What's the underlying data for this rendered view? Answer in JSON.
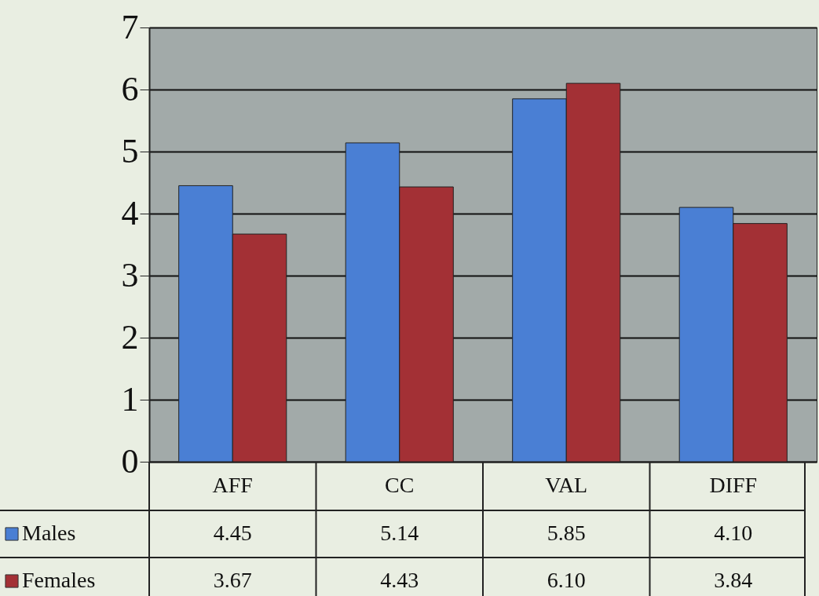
{
  "chart_data": {
    "type": "bar",
    "categories": [
      "AFF",
      "CC",
      "VAL",
      "DIFF"
    ],
    "series": [
      {
        "name": "Males",
        "color": "#4a7fd4",
        "values": [
          4.45,
          5.14,
          5.85,
          4.1
        ],
        "value_labels": [
          "4.45",
          "5.14",
          "5.85",
          "4.10"
        ]
      },
      {
        "name": "Females",
        "color": "#a33035",
        "values": [
          3.67,
          4.43,
          6.1,
          3.84
        ],
        "value_labels": [
          "3.67",
          "4.43",
          "6.10",
          "3.84"
        ]
      }
    ],
    "ylim": [
      0,
      7
    ],
    "yticks": [
      0,
      1,
      2,
      3,
      4,
      5,
      6,
      7
    ],
    "grid": "y",
    "legend": "bottom left"
  }
}
